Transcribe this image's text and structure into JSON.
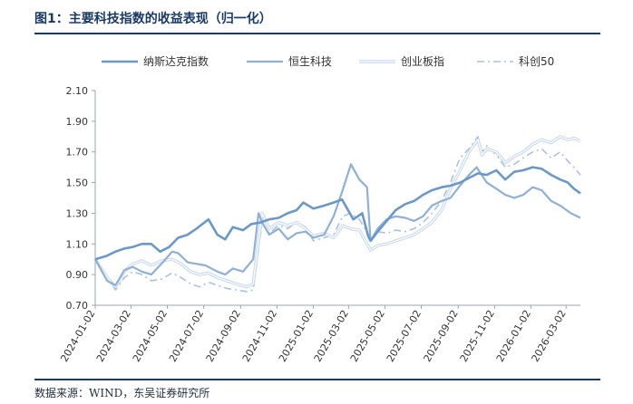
{
  "header": {
    "title": "图1：主要科技指数的收益表现（归一化）"
  },
  "footer": {
    "source": "数据来源：WIND，东吴证券研究所"
  },
  "chart_data": {
    "type": "line",
    "title": "",
    "xlabel": "",
    "ylabel": "",
    "x_start": "2024-01-02",
    "x_end": "2026-03-26",
    "ylim": [
      0.7,
      2.1
    ],
    "yticks": [
      "0.70",
      "0.90",
      "1.10",
      "1.30",
      "1.50",
      "1.70",
      "1.90",
      "2.10"
    ],
    "xticks": [
      "2024-01-02",
      "2024-03-02",
      "2024-05-02",
      "2024-07-02",
      "2024-09-02",
      "2024-11-02",
      "2025-01-02",
      "2025-03-02",
      "2025-05-02",
      "2025-07-02",
      "2025-09-02",
      "2025-11-02",
      "2026-01-02",
      "2026-03-02"
    ],
    "grid": false,
    "legend_position": "top",
    "series": [
      {
        "name": "纳斯达克指数",
        "color": "#6a98c8",
        "style": "solid-thick",
        "points": [
          [
            "2024-01-02",
            1.0
          ],
          [
            "2024-01-20",
            1.02
          ],
          [
            "2024-02-05",
            1.05
          ],
          [
            "2024-02-20",
            1.07
          ],
          [
            "2024-03-05",
            1.08
          ],
          [
            "2024-03-20",
            1.1
          ],
          [
            "2024-04-05",
            1.1
          ],
          [
            "2024-04-20",
            1.05
          ],
          [
            "2024-05-05",
            1.08
          ],
          [
            "2024-05-20",
            1.14
          ],
          [
            "2024-06-05",
            1.16
          ],
          [
            "2024-06-20",
            1.2
          ],
          [
            "2024-07-10",
            1.26
          ],
          [
            "2024-07-25",
            1.16
          ],
          [
            "2024-08-07",
            1.13
          ],
          [
            "2024-08-20",
            1.21
          ],
          [
            "2024-09-06",
            1.19
          ],
          [
            "2024-09-20",
            1.23
          ],
          [
            "2024-10-05",
            1.24
          ],
          [
            "2024-10-20",
            1.26
          ],
          [
            "2024-11-05",
            1.27
          ],
          [
            "2024-11-20",
            1.3
          ],
          [
            "2024-12-05",
            1.32
          ],
          [
            "2024-12-16",
            1.37
          ],
          [
            "2025-01-02",
            1.33
          ],
          [
            "2025-01-20",
            1.35
          ],
          [
            "2025-02-05",
            1.37
          ],
          [
            "2025-02-19",
            1.39
          ],
          [
            "2025-03-10",
            1.26
          ],
          [
            "2025-03-25",
            1.3
          ],
          [
            "2025-04-04",
            1.15
          ],
          [
            "2025-04-08",
            1.12
          ],
          [
            "2025-04-20",
            1.18
          ],
          [
            "2025-05-05",
            1.25
          ],
          [
            "2025-05-20",
            1.32
          ],
          [
            "2025-06-05",
            1.36
          ],
          [
            "2025-06-20",
            1.38
          ],
          [
            "2025-07-05",
            1.42
          ],
          [
            "2025-07-20",
            1.45
          ],
          [
            "2025-08-05",
            1.47
          ],
          [
            "2025-08-20",
            1.48
          ],
          [
            "2025-09-05",
            1.5
          ],
          [
            "2025-09-20",
            1.53
          ],
          [
            "2025-10-05",
            1.56
          ],
          [
            "2025-10-20",
            1.55
          ],
          [
            "2025-11-05",
            1.58
          ],
          [
            "2025-11-20",
            1.52
          ],
          [
            "2025-12-05",
            1.57
          ],
          [
            "2025-12-20",
            1.58
          ],
          [
            "2026-01-05",
            1.6
          ],
          [
            "2026-01-20",
            1.59
          ],
          [
            "2026-02-05",
            1.55
          ],
          [
            "2026-02-20",
            1.52
          ],
          [
            "2026-03-05",
            1.5
          ],
          [
            "2026-03-15",
            1.46
          ],
          [
            "2026-03-26",
            1.43
          ]
        ]
      },
      {
        "name": "恒生科技",
        "color": "#8eb0d6",
        "style": "solid",
        "points": [
          [
            "2024-01-02",
            1.0
          ],
          [
            "2024-01-22",
            0.86
          ],
          [
            "2024-02-05",
            0.83
          ],
          [
            "2024-02-20",
            0.93
          ],
          [
            "2024-03-05",
            0.95
          ],
          [
            "2024-03-20",
            0.92
          ],
          [
            "2024-04-05",
            0.9
          ],
          [
            "2024-04-22",
            0.97
          ],
          [
            "2024-05-10",
            1.05
          ],
          [
            "2024-05-20",
            1.04
          ],
          [
            "2024-06-05",
            0.98
          ],
          [
            "2024-06-20",
            0.97
          ],
          [
            "2024-07-05",
            0.96
          ],
          [
            "2024-07-25",
            0.92
          ],
          [
            "2024-08-07",
            0.9
          ],
          [
            "2024-08-20",
            0.94
          ],
          [
            "2024-09-06",
            0.92
          ],
          [
            "2024-09-23",
            1.0
          ],
          [
            "2024-10-02",
            1.3
          ],
          [
            "2024-10-08",
            1.24
          ],
          [
            "2024-10-20",
            1.16
          ],
          [
            "2024-11-05",
            1.2
          ],
          [
            "2024-11-20",
            1.13
          ],
          [
            "2024-12-05",
            1.17
          ],
          [
            "2024-12-20",
            1.18
          ],
          [
            "2025-01-02",
            1.14
          ],
          [
            "2025-01-20",
            1.16
          ],
          [
            "2025-02-05",
            1.28
          ],
          [
            "2025-02-20",
            1.45
          ],
          [
            "2025-03-06",
            1.62
          ],
          [
            "2025-03-20",
            1.52
          ],
          [
            "2025-04-02",
            1.47
          ],
          [
            "2025-04-08",
            1.12
          ],
          [
            "2025-04-20",
            1.2
          ],
          [
            "2025-05-05",
            1.26
          ],
          [
            "2025-05-20",
            1.28
          ],
          [
            "2025-06-05",
            1.27
          ],
          [
            "2025-06-20",
            1.25
          ],
          [
            "2025-07-05",
            1.28
          ],
          [
            "2025-07-20",
            1.35
          ],
          [
            "2025-08-05",
            1.38
          ],
          [
            "2025-08-20",
            1.4
          ],
          [
            "2025-09-05",
            1.48
          ],
          [
            "2025-09-20",
            1.55
          ],
          [
            "2025-10-03",
            1.6
          ],
          [
            "2025-10-20",
            1.5
          ],
          [
            "2025-11-05",
            1.46
          ],
          [
            "2025-11-20",
            1.42
          ],
          [
            "2025-12-05",
            1.4
          ],
          [
            "2025-12-20",
            1.42
          ],
          [
            "2026-01-05",
            1.47
          ],
          [
            "2026-01-20",
            1.45
          ],
          [
            "2026-02-05",
            1.38
          ],
          [
            "2026-02-20",
            1.35
          ],
          [
            "2026-03-10",
            1.3
          ],
          [
            "2026-03-26",
            1.27
          ]
        ]
      },
      {
        "name": "创业板指",
        "color": "#c7d8ee",
        "style": "double",
        "points": [
          [
            "2024-01-02",
            1.0
          ],
          [
            "2024-01-22",
            0.88
          ],
          [
            "2024-02-05",
            0.82
          ],
          [
            "2024-02-20",
            0.92
          ],
          [
            "2024-03-05",
            0.97
          ],
          [
            "2024-03-20",
            0.99
          ],
          [
            "2024-04-05",
            0.96
          ],
          [
            "2024-04-22",
            0.99
          ],
          [
            "2024-05-10",
            1.0
          ],
          [
            "2024-05-25",
            0.97
          ],
          [
            "2024-06-10",
            0.92
          ],
          [
            "2024-06-25",
            0.9
          ],
          [
            "2024-07-10",
            0.91
          ],
          [
            "2024-07-25",
            0.88
          ],
          [
            "2024-08-10",
            0.86
          ],
          [
            "2024-08-25",
            0.84
          ],
          [
            "2024-09-12",
            0.82
          ],
          [
            "2024-09-23",
            0.84
          ],
          [
            "2024-10-08",
            1.3
          ],
          [
            "2024-10-20",
            1.2
          ],
          [
            "2024-11-05",
            1.24
          ],
          [
            "2024-11-20",
            1.22
          ],
          [
            "2024-12-05",
            1.24
          ],
          [
            "2024-12-20",
            1.2
          ],
          [
            "2025-01-02",
            1.15
          ],
          [
            "2025-01-20",
            1.17
          ],
          [
            "2025-02-05",
            1.14
          ],
          [
            "2025-02-20",
            1.22
          ],
          [
            "2025-03-05",
            1.2
          ],
          [
            "2025-03-20",
            1.19
          ],
          [
            "2025-04-08",
            1.06
          ],
          [
            "2025-04-20",
            1.09
          ],
          [
            "2025-05-05",
            1.1
          ],
          [
            "2025-05-20",
            1.12
          ],
          [
            "2025-06-05",
            1.14
          ],
          [
            "2025-06-20",
            1.16
          ],
          [
            "2025-07-05",
            1.2
          ],
          [
            "2025-07-20",
            1.24
          ],
          [
            "2025-08-05",
            1.32
          ],
          [
            "2025-08-20",
            1.46
          ],
          [
            "2025-09-05",
            1.58
          ],
          [
            "2025-09-20",
            1.7
          ],
          [
            "2025-10-05",
            1.78
          ],
          [
            "2025-10-12",
            1.68
          ],
          [
            "2025-10-20",
            1.72
          ],
          [
            "2025-11-05",
            1.7
          ],
          [
            "2025-11-20",
            1.63
          ],
          [
            "2025-12-05",
            1.67
          ],
          [
            "2025-12-20",
            1.7
          ],
          [
            "2026-01-05",
            1.75
          ],
          [
            "2026-01-20",
            1.78
          ],
          [
            "2026-02-05",
            1.76
          ],
          [
            "2026-02-20",
            1.8
          ],
          [
            "2026-03-05",
            1.78
          ],
          [
            "2026-03-15",
            1.79
          ],
          [
            "2026-03-26",
            1.77
          ]
        ]
      },
      {
        "name": "科创50",
        "color": "#a9c2e0",
        "style": "dashdot",
        "points": [
          [
            "2024-01-02",
            1.0
          ],
          [
            "2024-01-22",
            0.88
          ],
          [
            "2024-02-05",
            0.8
          ],
          [
            "2024-02-20",
            0.88
          ],
          [
            "2024-03-05",
            0.92
          ],
          [
            "2024-03-20",
            0.9
          ],
          [
            "2024-04-05",
            0.86
          ],
          [
            "2024-04-22",
            0.87
          ],
          [
            "2024-05-10",
            0.91
          ],
          [
            "2024-05-25",
            0.88
          ],
          [
            "2024-06-10",
            0.84
          ],
          [
            "2024-06-25",
            0.82
          ],
          [
            "2024-07-10",
            0.85
          ],
          [
            "2024-07-25",
            0.83
          ],
          [
            "2024-08-10",
            0.81
          ],
          [
            "2024-08-25",
            0.8
          ],
          [
            "2024-09-12",
            0.79
          ],
          [
            "2024-09-23",
            0.8
          ],
          [
            "2024-10-08",
            1.24
          ],
          [
            "2024-10-20",
            1.17
          ],
          [
            "2024-11-05",
            1.22
          ],
          [
            "2024-11-20",
            1.2
          ],
          [
            "2024-12-05",
            1.24
          ],
          [
            "2024-12-20",
            1.21
          ],
          [
            "2025-01-02",
            1.12
          ],
          [
            "2025-01-20",
            1.14
          ],
          [
            "2025-02-05",
            1.16
          ],
          [
            "2025-02-20",
            1.28
          ],
          [
            "2025-03-05",
            1.3
          ],
          [
            "2025-03-20",
            1.26
          ],
          [
            "2025-04-08",
            1.14
          ],
          [
            "2025-04-20",
            1.18
          ],
          [
            "2025-05-05",
            1.17
          ],
          [
            "2025-05-20",
            1.19
          ],
          [
            "2025-06-05",
            1.18
          ],
          [
            "2025-06-20",
            1.2
          ],
          [
            "2025-07-05",
            1.24
          ],
          [
            "2025-07-20",
            1.3
          ],
          [
            "2025-08-05",
            1.38
          ],
          [
            "2025-08-20",
            1.5
          ],
          [
            "2025-09-05",
            1.66
          ],
          [
            "2025-09-20",
            1.72
          ],
          [
            "2025-10-05",
            1.8
          ],
          [
            "2025-10-12",
            1.7
          ],
          [
            "2025-10-20",
            1.74
          ],
          [
            "2025-11-05",
            1.68
          ],
          [
            "2025-11-20",
            1.6
          ],
          [
            "2025-12-05",
            1.62
          ],
          [
            "2025-12-20",
            1.66
          ],
          [
            "2026-01-05",
            1.7
          ],
          [
            "2026-01-20",
            1.72
          ],
          [
            "2026-02-05",
            1.66
          ],
          [
            "2026-02-20",
            1.7
          ],
          [
            "2026-03-05",
            1.64
          ],
          [
            "2026-03-15",
            1.6
          ],
          [
            "2026-03-26",
            1.55
          ]
        ]
      }
    ]
  }
}
